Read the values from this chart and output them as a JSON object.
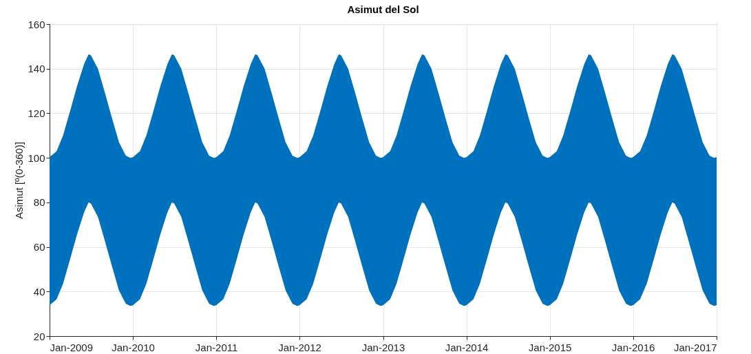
{
  "chart_data": {
    "type": "line",
    "title": "Asimut del Sol",
    "ylabel": "Asimut [º(0-360)]",
    "x": [
      "2009-01-01",
      "2009-02-01",
      "2009-03-01",
      "2009-04-01",
      "2009-05-01",
      "2009-06-01",
      "2009-06-21",
      "2009-07-01",
      "2009-08-01",
      "2009-09-01",
      "2009-10-01",
      "2009-11-01",
      "2009-12-01",
      "2009-12-21",
      "2010-01-01",
      "2010-02-01",
      "2010-03-01",
      "2010-04-01",
      "2010-05-01",
      "2010-06-01",
      "2010-06-21",
      "2010-07-01",
      "2010-08-01",
      "2010-09-01",
      "2010-10-01",
      "2010-11-01",
      "2010-12-01",
      "2010-12-21",
      "2011-01-01",
      "2011-02-01",
      "2011-03-01",
      "2011-04-01",
      "2011-05-01",
      "2011-06-01",
      "2011-06-21",
      "2011-07-01",
      "2011-08-01",
      "2011-09-01",
      "2011-10-01",
      "2011-11-01",
      "2011-12-01",
      "2011-12-21",
      "2012-01-01",
      "2012-02-01",
      "2012-03-01",
      "2012-04-01",
      "2012-05-01",
      "2012-06-01",
      "2012-06-21",
      "2012-07-01",
      "2012-08-01",
      "2012-09-01",
      "2012-10-01",
      "2012-11-01",
      "2012-12-01",
      "2012-12-21",
      "2013-01-01",
      "2013-02-01",
      "2013-03-01",
      "2013-04-01",
      "2013-05-01",
      "2013-06-01",
      "2013-06-21",
      "2013-07-01",
      "2013-08-01",
      "2013-09-01",
      "2013-10-01",
      "2013-11-01",
      "2013-12-01",
      "2013-12-21",
      "2014-01-01",
      "2014-02-01",
      "2014-03-01",
      "2014-04-01",
      "2014-05-01",
      "2014-06-01",
      "2014-06-21",
      "2014-07-01",
      "2014-08-01",
      "2014-09-01",
      "2014-10-01",
      "2014-11-01",
      "2014-12-01",
      "2014-12-21",
      "2015-01-01",
      "2015-02-01",
      "2015-03-01",
      "2015-04-01",
      "2015-05-01",
      "2015-06-01",
      "2015-06-21",
      "2015-07-01",
      "2015-08-01",
      "2015-09-01",
      "2015-10-01",
      "2015-11-01",
      "2015-12-01",
      "2015-12-21",
      "2016-01-01",
      "2016-02-01",
      "2016-03-01",
      "2016-04-01",
      "2016-05-01",
      "2016-06-01",
      "2016-06-21",
      "2016-07-01",
      "2016-08-01",
      "2016-09-01",
      "2016-10-01",
      "2016-11-01",
      "2016-12-01",
      "2016-12-21",
      "2017-01-01"
    ],
    "series": [
      {
        "color": "#0072bd",
        "values": [
          null,
          null,
          null,
          null,
          null,
          null,
          null,
          null,
          null,
          null,
          null,
          null,
          null,
          null,
          null,
          null,
          null,
          null,
          null,
          null,
          null,
          null,
          null,
          null,
          null,
          null,
          null,
          null,
          null,
          null,
          null,
          null,
          null,
          null,
          null,
          null,
          null,
          null,
          null,
          null,
          null,
          null,
          null,
          null,
          null,
          null,
          null,
          null,
          null,
          null,
          null,
          null,
          null,
          null,
          null,
          null,
          null,
          null,
          null,
          null,
          null,
          null,
          null,
          null,
          null,
          null,
          null,
          null,
          null,
          null,
          null,
          null,
          null,
          null,
          null,
          null,
          null,
          null,
          null,
          null,
          null,
          null,
          null,
          null,
          null,
          null,
          null,
          null,
          null,
          null,
          null,
          null,
          null,
          null,
          null,
          null,
          null,
          null,
          null,
          null,
          null,
          null,
          null,
          null,
          null,
          null,
          null,
          null,
          null,
          null,
          null,
          null,
          null
        ],
        "upper": [
          100.3,
          103,
          110,
          121,
          132,
          142,
          146.5,
          146,
          140,
          129,
          118,
          107,
          101,
          100,
          100.3,
          103,
          110,
          121,
          132,
          142,
          146.5,
          146,
          140,
          129,
          118,
          107,
          101,
          100,
          100.3,
          103,
          110,
          121,
          132,
          142,
          146.5,
          146,
          140,
          129,
          118,
          107,
          101,
          100,
          100.3,
          103,
          110,
          121,
          132,
          142,
          146.5,
          146,
          140,
          129,
          118,
          107,
          101,
          100,
          100.3,
          103,
          110,
          121,
          132,
          142,
          146.5,
          146,
          140,
          129,
          118,
          107,
          101,
          100,
          100.3,
          103,
          110,
          121,
          132,
          142,
          146.5,
          146,
          140,
          129,
          118,
          107,
          101,
          100,
          100.3,
          103,
          110,
          121,
          132,
          142,
          146.5,
          146,
          140,
          129,
          118,
          107,
          101,
          100,
          100.3,
          103,
          110,
          121,
          132,
          142,
          146.5,
          146,
          140,
          129,
          118,
          107,
          101,
          100,
          100.3
        ],
        "lower": [
          33.8,
          36.5,
          43.5,
          54.5,
          65.5,
          75.5,
          80,
          79.5,
          73.5,
          62.5,
          51.5,
          40.5,
          34.5,
          33.5,
          33.8,
          36.5,
          43.5,
          54.5,
          65.5,
          75.5,
          80,
          79.5,
          73.5,
          62.5,
          51.5,
          40.5,
          34.5,
          33.5,
          33.8,
          36.5,
          43.5,
          54.5,
          65.5,
          75.5,
          80,
          79.5,
          73.5,
          62.5,
          51.5,
          40.5,
          34.5,
          33.5,
          33.8,
          36.5,
          43.5,
          54.5,
          65.5,
          75.5,
          80,
          79.5,
          73.5,
          62.5,
          51.5,
          40.5,
          34.5,
          33.5,
          33.8,
          36.5,
          43.5,
          54.5,
          65.5,
          75.5,
          80,
          79.5,
          73.5,
          62.5,
          51.5,
          40.5,
          34.5,
          33.5,
          33.8,
          36.5,
          43.5,
          54.5,
          65.5,
          75.5,
          80,
          79.5,
          73.5,
          62.5,
          51.5,
          40.5,
          34.5,
          33.5,
          33.8,
          36.5,
          43.5,
          54.5,
          65.5,
          75.5,
          80,
          79.5,
          73.5,
          62.5,
          51.5,
          40.5,
          34.5,
          33.5,
          33.8,
          36.5,
          43.5,
          54.5,
          65.5,
          75.5,
          80,
          79.5,
          73.5,
          62.5,
          51.5,
          40.5,
          34.5,
          33.5,
          33.8
        ]
      }
    ],
    "xlim": [
      "2009-01-01",
      "2017-01-01"
    ],
    "xticks": [
      {
        "value": "2009-01-01",
        "label": "Jan-2009"
      },
      {
        "value": "2010-01-01",
        "label": "Jan-2010"
      },
      {
        "value": "2011-01-01",
        "label": "Jan-2011"
      },
      {
        "value": "2012-01-01",
        "label": "Jan-2012"
      },
      {
        "value": "2013-01-01",
        "label": "Jan-2013"
      },
      {
        "value": "2014-01-01",
        "label": "Jan-2014"
      },
      {
        "value": "2015-01-01",
        "label": "Jan-2015"
      },
      {
        "value": "2016-01-01",
        "label": "Jan-2016"
      },
      {
        "value": "2017-01-01",
        "label": "Jan-2017"
      }
    ],
    "ylim": [
      20,
      160
    ],
    "yticks": [
      20,
      40,
      60,
      80,
      100,
      120,
      140,
      160
    ],
    "grid": true
  }
}
